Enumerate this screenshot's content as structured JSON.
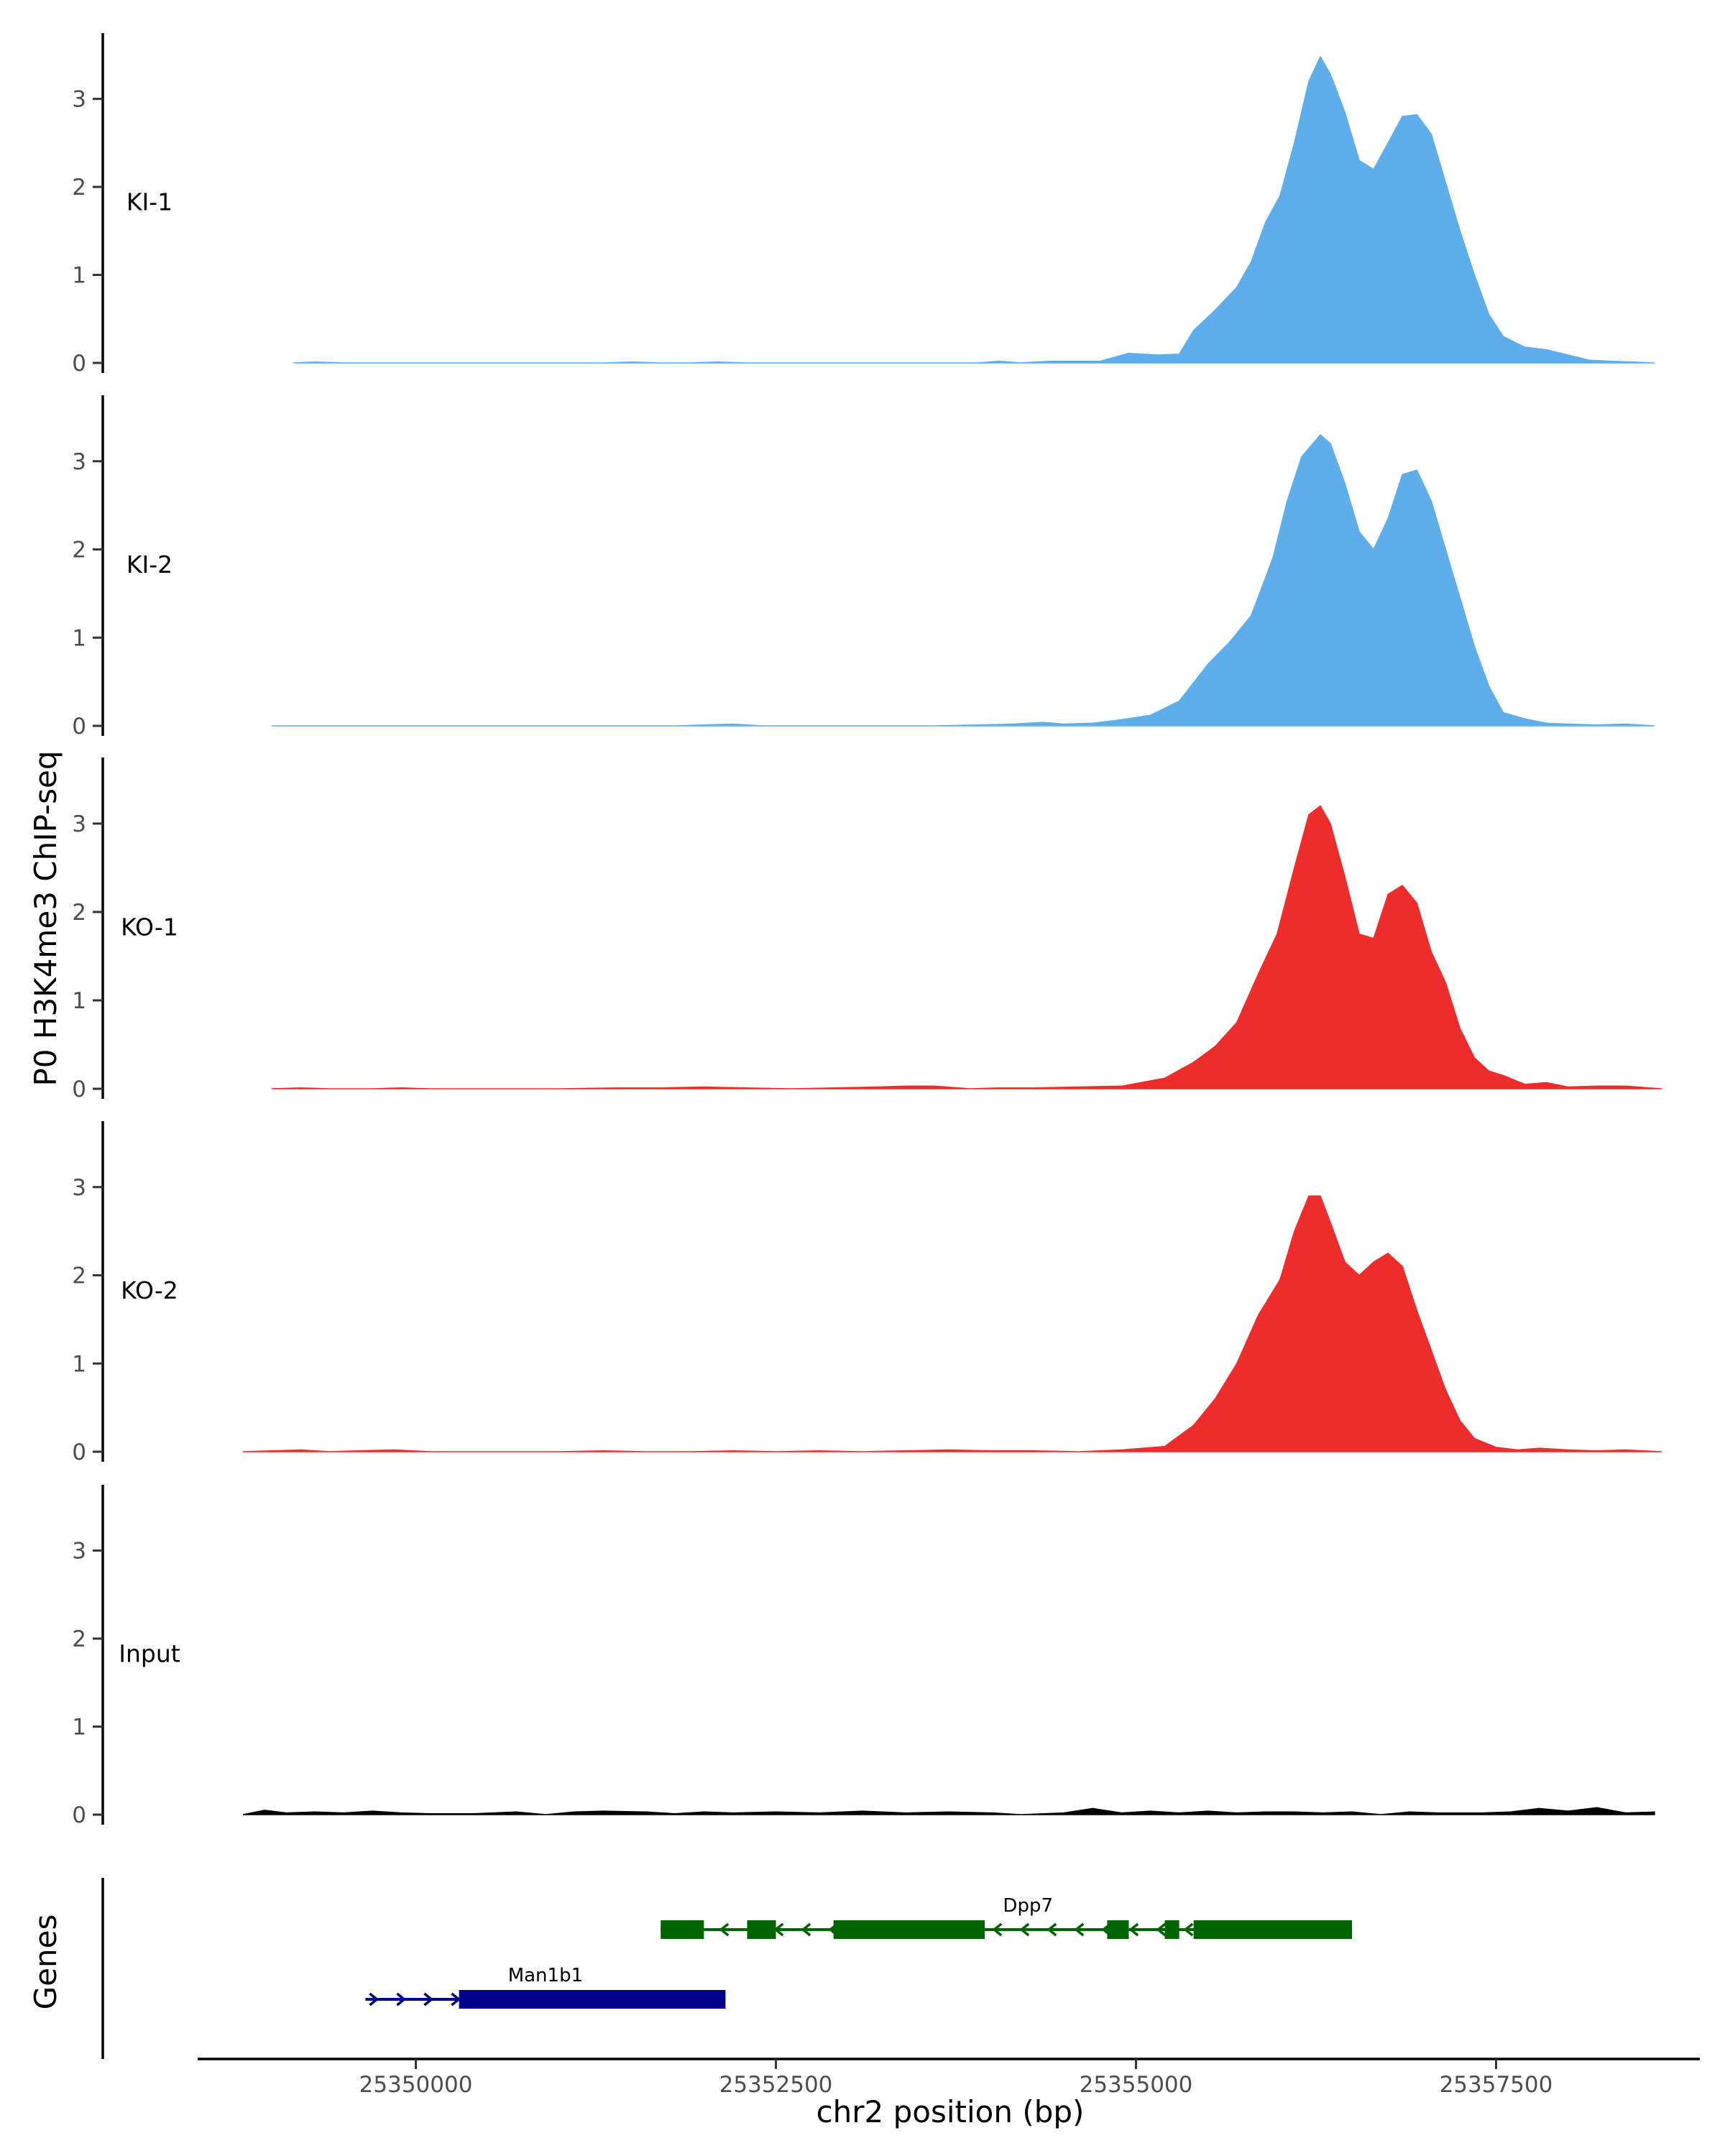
{
  "chart_data": {
    "type": "area",
    "title": "",
    "ylabel": "P0 H3K4me3 ChIP-seq",
    "xlabel": "chr2 position (bp)",
    "xlim": [
      25348550,
      25358850
    ],
    "ylim": [
      0,
      3.65
    ],
    "x_ticks": [
      25350000,
      25352500,
      25355000,
      25357500
    ],
    "x_tick_labels": [
      "25350000",
      "25352500",
      "25355000",
      "25357500"
    ],
    "y_ticks": [
      0,
      1,
      2,
      3
    ],
    "y_tick_labels": [
      "0",
      "1",
      "2",
      "3"
    ],
    "colors": {
      "KI": "#5faeec",
      "KO": "#ee2c2c",
      "Input": "#000000",
      "Dpp7": "#006400",
      "Man1b1": "#00008b"
    },
    "series": [
      {
        "name": "KI-1",
        "color": "#5faeec",
        "x_start": 25349150,
        "x_end": 25358600,
        "points": [
          [
            25349150,
            0
          ],
          [
            25349300,
            0.01
          ],
          [
            25349500,
            0
          ],
          [
            25349800,
            0
          ],
          [
            25350000,
            0
          ],
          [
            25350300,
            0
          ],
          [
            25350700,
            0
          ],
          [
            25351000,
            0
          ],
          [
            25351300,
            0
          ],
          [
            25351500,
            0.01
          ],
          [
            25351700,
            0
          ],
          [
            25351900,
            0
          ],
          [
            25352100,
            0.01
          ],
          [
            25352300,
            0
          ],
          [
            25352600,
            0
          ],
          [
            25352900,
            0
          ],
          [
            25353100,
            0
          ],
          [
            25353300,
            0
          ],
          [
            25353700,
            0
          ],
          [
            25353900,
            0
          ],
          [
            25354050,
            0.02
          ],
          [
            25354200,
            0
          ],
          [
            25354400,
            0.02
          ],
          [
            25354600,
            0.02
          ],
          [
            25354750,
            0.02
          ],
          [
            25354950,
            0.11
          ],
          [
            25355150,
            0.09
          ],
          [
            25355300,
            0.1
          ],
          [
            25355400,
            0.37
          ],
          [
            25355550,
            0.6
          ],
          [
            25355700,
            0.86
          ],
          [
            25355800,
            1.15
          ],
          [
            25355900,
            1.6
          ],
          [
            25356000,
            1.9
          ],
          [
            25356100,
            2.5
          ],
          [
            25356200,
            3.2
          ],
          [
            25356280,
            3.48
          ],
          [
            25356350,
            3.28
          ],
          [
            25356450,
            2.85
          ],
          [
            25356550,
            2.3
          ],
          [
            25356650,
            2.2
          ],
          [
            25356750,
            2.5
          ],
          [
            25356850,
            2.8
          ],
          [
            25356950,
            2.82
          ],
          [
            25357050,
            2.6
          ],
          [
            25357150,
            2.05
          ],
          [
            25357250,
            1.5
          ],
          [
            25357350,
            1.0
          ],
          [
            25357450,
            0.55
          ],
          [
            25357550,
            0.3
          ],
          [
            25357700,
            0.18
          ],
          [
            25357850,
            0.15
          ],
          [
            25358000,
            0.09
          ],
          [
            25358150,
            0.03
          ],
          [
            25358300,
            0.02
          ],
          [
            25358450,
            0.01
          ],
          [
            25358600,
            0
          ]
        ]
      },
      {
        "name": "KI-2",
        "color": "#5faeec",
        "x_start": 25349000,
        "x_end": 25358600,
        "points": [
          [
            25349000,
            0
          ],
          [
            25349300,
            0
          ],
          [
            25349600,
            0
          ],
          [
            25350000,
            0
          ],
          [
            25350300,
            0
          ],
          [
            25350700,
            0
          ],
          [
            25351000,
            0
          ],
          [
            25351300,
            0
          ],
          [
            25351600,
            0
          ],
          [
            25351800,
            0
          ],
          [
            25352000,
            0.01
          ],
          [
            25352200,
            0.02
          ],
          [
            25352400,
            0
          ],
          [
            25352700,
            0
          ],
          [
            25353000,
            0
          ],
          [
            25353300,
            0
          ],
          [
            25353600,
            0
          ],
          [
            25353900,
            0.01
          ],
          [
            25354150,
            0.02
          ],
          [
            25354350,
            0.04
          ],
          [
            25354500,
            0.02
          ],
          [
            25354700,
            0.03
          ],
          [
            25354900,
            0.07
          ],
          [
            25355100,
            0.12
          ],
          [
            25355300,
            0.28
          ],
          [
            25355500,
            0.7
          ],
          [
            25355650,
            0.95
          ],
          [
            25355800,
            1.25
          ],
          [
            25355950,
            1.9
          ],
          [
            25356050,
            2.55
          ],
          [
            25356150,
            3.05
          ],
          [
            25356280,
            3.3
          ],
          [
            25356350,
            3.2
          ],
          [
            25356450,
            2.75
          ],
          [
            25356550,
            2.2
          ],
          [
            25356650,
            2.0
          ],
          [
            25356750,
            2.35
          ],
          [
            25356850,
            2.85
          ],
          [
            25356950,
            2.9
          ],
          [
            25357050,
            2.55
          ],
          [
            25357150,
            2.0
          ],
          [
            25357250,
            1.45
          ],
          [
            25357350,
            0.9
          ],
          [
            25357450,
            0.45
          ],
          [
            25357550,
            0.15
          ],
          [
            25357700,
            0.08
          ],
          [
            25357850,
            0.03
          ],
          [
            25358000,
            0.02
          ],
          [
            25358200,
            0.01
          ],
          [
            25358400,
            0.02
          ],
          [
            25358600,
            0
          ]
        ]
      },
      {
        "name": "KO-1",
        "color": "#ee2c2c",
        "x_start": 25349000,
        "x_end": 25358650,
        "points": [
          [
            25349000,
            0
          ],
          [
            25349200,
            0.01
          ],
          [
            25349400,
            0
          ],
          [
            25349700,
            0
          ],
          [
            25349900,
            0.01
          ],
          [
            25350100,
            0
          ],
          [
            25350400,
            0
          ],
          [
            25350700,
            0
          ],
          [
            25351000,
            0
          ],
          [
            25351400,
            0.01
          ],
          [
            25351700,
            0.01
          ],
          [
            25352000,
            0.02
          ],
          [
            25352300,
            0.01
          ],
          [
            25352600,
            0
          ],
          [
            25352900,
            0.01
          ],
          [
            25353200,
            0.02
          ],
          [
            25353400,
            0.03
          ],
          [
            25353600,
            0.03
          ],
          [
            25353850,
            0
          ],
          [
            25354050,
            0.01
          ],
          [
            25354300,
            0.01
          ],
          [
            25354600,
            0.02
          ],
          [
            25354900,
            0.03
          ],
          [
            25355200,
            0.12
          ],
          [
            25355400,
            0.3
          ],
          [
            25355550,
            0.48
          ],
          [
            25355700,
            0.75
          ],
          [
            25355850,
            1.3
          ],
          [
            25355980,
            1.75
          ],
          [
            25356100,
            2.5
          ],
          [
            25356200,
            3.1
          ],
          [
            25356280,
            3.2
          ],
          [
            25356350,
            3.0
          ],
          [
            25356450,
            2.4
          ],
          [
            25356550,
            1.75
          ],
          [
            25356650,
            1.7
          ],
          [
            25356750,
            2.2
          ],
          [
            25356850,
            2.3
          ],
          [
            25356950,
            2.1
          ],
          [
            25357050,
            1.55
          ],
          [
            25357150,
            1.2
          ],
          [
            25357250,
            0.68
          ],
          [
            25357350,
            0.35
          ],
          [
            25357450,
            0.2
          ],
          [
            25357550,
            0.15
          ],
          [
            25357700,
            0.05
          ],
          [
            25357850,
            0.07
          ],
          [
            25358000,
            0.02
          ],
          [
            25358200,
            0.03
          ],
          [
            25358400,
            0.03
          ],
          [
            25358650,
            0
          ]
        ]
      },
      {
        "name": "KO-2",
        "color": "#ee2c2c",
        "x_start": 25348800,
        "x_end": 25358650,
        "points": [
          [
            25348800,
            0
          ],
          [
            25349000,
            0.01
          ],
          [
            25349200,
            0.02
          ],
          [
            25349400,
            0
          ],
          [
            25349600,
            0.01
          ],
          [
            25349850,
            0.02
          ],
          [
            25350100,
            0
          ],
          [
            25350400,
            0
          ],
          [
            25350700,
            0
          ],
          [
            25351000,
            0
          ],
          [
            25351300,
            0.01
          ],
          [
            25351600,
            0
          ],
          [
            25351900,
            0
          ],
          [
            25352200,
            0.01
          ],
          [
            25352500,
            0
          ],
          [
            25352800,
            0.01
          ],
          [
            25353100,
            0
          ],
          [
            25353400,
            0.01
          ],
          [
            25353700,
            0.02
          ],
          [
            25354000,
            0.01
          ],
          [
            25354300,
            0.01
          ],
          [
            25354600,
            0
          ],
          [
            25354900,
            0.02
          ],
          [
            25355200,
            0.06
          ],
          [
            25355400,
            0.3
          ],
          [
            25355550,
            0.6
          ],
          [
            25355700,
            1.0
          ],
          [
            25355850,
            1.55
          ],
          [
            25356000,
            1.95
          ],
          [
            25356100,
            2.5
          ],
          [
            25356200,
            2.9
          ],
          [
            25356280,
            2.9
          ],
          [
            25356350,
            2.6
          ],
          [
            25356450,
            2.15
          ],
          [
            25356550,
            2.0
          ],
          [
            25356650,
            2.15
          ],
          [
            25356750,
            2.25
          ],
          [
            25356850,
            2.1
          ],
          [
            25356950,
            1.6
          ],
          [
            25357050,
            1.15
          ],
          [
            25357150,
            0.7
          ],
          [
            25357250,
            0.35
          ],
          [
            25357350,
            0.15
          ],
          [
            25357500,
            0.05
          ],
          [
            25357650,
            0.02
          ],
          [
            25357800,
            0.04
          ],
          [
            25358000,
            0.02
          ],
          [
            25358200,
            0.01
          ],
          [
            25358400,
            0.02
          ],
          [
            25358650,
            0
          ]
        ]
      },
      {
        "name": "Input",
        "color": "#000000",
        "x_start": 25348800,
        "x_end": 25358600,
        "points": [
          [
            25348800,
            0
          ],
          [
            25348950,
            0.05
          ],
          [
            25349100,
            0.02
          ],
          [
            25349300,
            0.03
          ],
          [
            25349500,
            0.02
          ],
          [
            25349700,
            0.04
          ],
          [
            25349900,
            0.02
          ],
          [
            25350100,
            0.01
          ],
          [
            25350400,
            0.01
          ],
          [
            25350700,
            0.03
          ],
          [
            25350900,
            0
          ],
          [
            25351100,
            0.03
          ],
          [
            25351300,
            0.04
          ],
          [
            25351600,
            0.03
          ],
          [
            25351800,
            0.01
          ],
          [
            25352000,
            0.03
          ],
          [
            25352200,
            0.02
          ],
          [
            25352500,
            0.03
          ],
          [
            25352800,
            0.02
          ],
          [
            25353100,
            0.04
          ],
          [
            25353400,
            0.02
          ],
          [
            25353700,
            0.03
          ],
          [
            25354000,
            0.02
          ],
          [
            25354200,
            0.0
          ],
          [
            25354500,
            0.02
          ],
          [
            25354700,
            0.07
          ],
          [
            25354900,
            0.02
          ],
          [
            25355100,
            0.04
          ],
          [
            25355300,
            0.02
          ],
          [
            25355500,
            0.04
          ],
          [
            25355700,
            0.02
          ],
          [
            25355900,
            0.03
          ],
          [
            25356100,
            0.03
          ],
          [
            25356300,
            0.02
          ],
          [
            25356500,
            0.03
          ],
          [
            25356700,
            0.0
          ],
          [
            25356900,
            0.03
          ],
          [
            25357100,
            0.02
          ],
          [
            25357400,
            0.02
          ],
          [
            25357600,
            0.03
          ],
          [
            25357800,
            0.07
          ],
          [
            25358000,
            0.04
          ],
          [
            25358200,
            0.08
          ],
          [
            25358400,
            0.02
          ],
          [
            25358600,
            0.03
          ]
        ]
      }
    ],
    "genes_track_label": "Genes",
    "genes": [
      {
        "name": "Dpp7",
        "color": "#006400",
        "strand": "-",
        "start": 25351700,
        "end": 25356500,
        "exons": [
          [
            25351700,
            25352000
          ],
          [
            25352300,
            25352500
          ],
          [
            25352900,
            25353950
          ],
          [
            25354800,
            25354950
          ],
          [
            25355200,
            25355300
          ],
          [
            25355400,
            25356500
          ]
        ]
      },
      {
        "name": "Man1b1",
        "color": "#00008b",
        "strand": "+",
        "start": 25349650,
        "end": 25352150,
        "exons": [
          [
            25350300,
            25352150
          ]
        ]
      }
    ]
  }
}
